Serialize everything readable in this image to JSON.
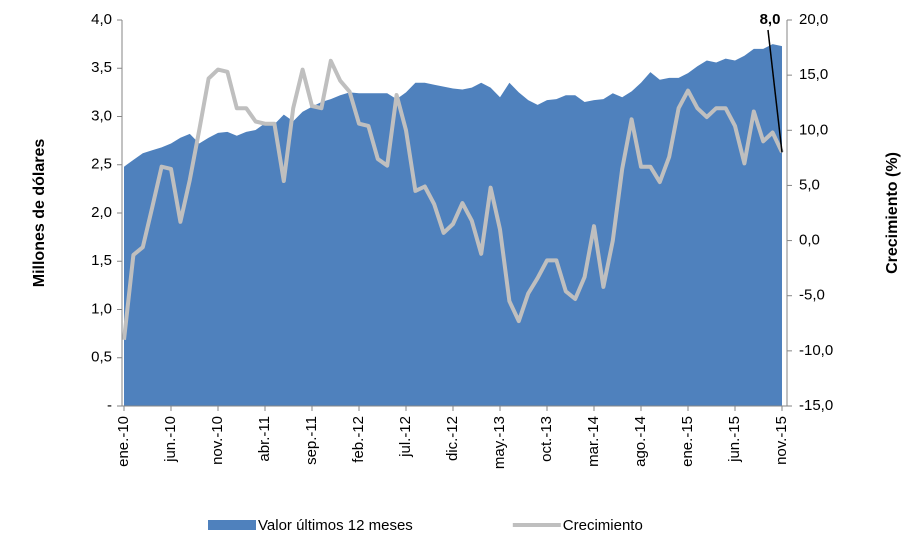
{
  "chart_data": {
    "type": "area_line",
    "ylabel": "Millones de dólares",
    "y2label": "Crecimiento (%)",
    "categories": [
      "ene.-10",
      null,
      null,
      null,
      null,
      "jun.-10",
      null,
      null,
      null,
      null,
      "nov.-10",
      null,
      null,
      null,
      null,
      "abr.-11",
      null,
      null,
      null,
      null,
      "sep.-11",
      null,
      null,
      null,
      null,
      "feb.-12",
      null,
      null,
      null,
      null,
      "jul.-12",
      null,
      null,
      null,
      null,
      "dic.-12",
      null,
      null,
      null,
      null,
      "may.-13",
      null,
      null,
      null,
      null,
      "oct.-13",
      null,
      null,
      null,
      null,
      "mar.-14",
      null,
      null,
      null,
      null,
      "ago.-14",
      null,
      null,
      null,
      null,
      "ene.-15",
      null,
      null,
      null,
      null,
      "jun.-15",
      null,
      null,
      null,
      null,
      "nov.-15"
    ],
    "series": [
      {
        "name": "Valor últimos 12 meses",
        "color": "#4f81bd",
        "kind": "area",
        "axis": "y",
        "values": [
          2.48,
          2.55,
          2.62,
          2.65,
          2.68,
          2.72,
          2.78,
          2.82,
          2.72,
          2.78,
          2.83,
          2.84,
          2.8,
          2.84,
          2.86,
          2.93,
          2.92,
          3.02,
          2.95,
          3.05,
          3.1,
          3.15,
          3.18,
          3.22,
          3.25,
          3.24,
          3.24,
          3.24,
          3.24,
          3.18,
          3.25,
          3.35,
          3.35,
          3.33,
          3.31,
          3.29,
          3.28,
          3.3,
          3.35,
          3.3,
          3.2,
          3.35,
          3.25,
          3.17,
          3.12,
          3.17,
          3.18,
          3.22,
          3.22,
          3.15,
          3.17,
          3.18,
          3.24,
          3.2,
          3.26,
          3.35,
          3.46,
          3.38,
          3.4,
          3.4,
          3.45,
          3.52,
          3.58,
          3.56,
          3.6,
          3.58,
          3.63,
          3.7,
          3.7,
          3.75,
          3.73
        ]
      },
      {
        "name": "Crecimiento",
        "color": "#bfbfbf",
        "kind": "line",
        "axis": "y2",
        "values": [
          -9,
          -1.3,
          -0.6,
          3,
          6.7,
          6.5,
          1.7,
          5.5,
          10,
          14.7,
          15.5,
          15.3,
          12,
          12,
          10.8,
          10.6,
          10.6,
          5.4,
          12,
          15.5,
          12.2,
          12,
          16.3,
          14.5,
          13.5,
          10.6,
          10.4,
          7.4,
          6.8,
          13.2,
          10,
          4.5,
          4.9,
          3.3,
          0.7,
          1.5,
          3.4,
          1.8,
          -1.2,
          4.8,
          1,
          -5.5,
          -7.3,
          -4.8,
          -3.4,
          -1.8,
          -1.8,
          -4.6,
          -5.3,
          -3.3,
          1.3,
          -4.2,
          0,
          6.5,
          11,
          6.7,
          6.7,
          5.3,
          7.6,
          12,
          13.6,
          12,
          11.2,
          12,
          12,
          10.4,
          7,
          11.7,
          9,
          9.8,
          8.0
        ],
        "value_labels": [
          null,
          null,
          null,
          null,
          null,
          null,
          null,
          null,
          null,
          null,
          null,
          null,
          null,
          null,
          null,
          null,
          null,
          null,
          null,
          null,
          null,
          null,
          null,
          null,
          null,
          null,
          null,
          null,
          null,
          null,
          null,
          null,
          null,
          null,
          null,
          null,
          null,
          null,
          null,
          null,
          null,
          null,
          null,
          null,
          null,
          null,
          null,
          null,
          null,
          null,
          null,
          null,
          null,
          null,
          null,
          null,
          null,
          null,
          null,
          null,
          null,
          null,
          null,
          null,
          null,
          null,
          null,
          null,
          null,
          null,
          "8,0"
        ]
      }
    ],
    "ylim": [
      0,
      4
    ],
    "yticks": [
      {
        "value": 0,
        "label": "-"
      },
      {
        "value": 0.5,
        "label": "0,5"
      },
      {
        "value": 1,
        "label": "1,0"
      },
      {
        "value": 1.5,
        "label": "1,5"
      },
      {
        "value": 2,
        "label": "2,0"
      },
      {
        "value": 2.5,
        "label": "2,5"
      },
      {
        "value": 3,
        "label": "3,0"
      },
      {
        "value": 3.5,
        "label": "3,5"
      },
      {
        "value": 4,
        "label": "4,0"
      }
    ],
    "y2lim": [
      -15,
      20
    ],
    "y2ticks": [
      {
        "value": -15,
        "label": "-15,0"
      },
      {
        "value": -10,
        "label": "-10,0"
      },
      {
        "value": -5,
        "label": "-5,0"
      },
      {
        "value": 0,
        "label": "0,0"
      },
      {
        "value": 5,
        "label": "5,0"
      },
      {
        "value": 10,
        "label": "10,0"
      },
      {
        "value": 15,
        "label": "15,0"
      },
      {
        "value": 20,
        "label": "20,0"
      }
    ],
    "legend": "bottom"
  }
}
